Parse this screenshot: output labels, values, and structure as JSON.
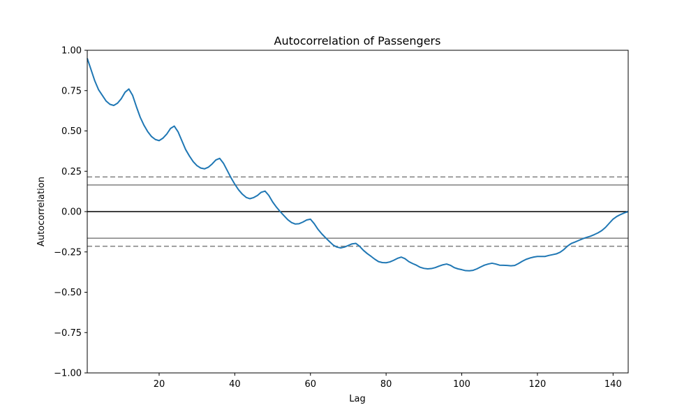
{
  "chart_data": {
    "type": "line",
    "title": "Autocorrelation of Passengers",
    "xlabel": "Lag",
    "ylabel": "Autocorrelation",
    "xlim": [
      1,
      144
    ],
    "ylim": [
      -1.0,
      1.0
    ],
    "x_ticks": [
      20,
      40,
      60,
      80,
      100,
      120,
      140
    ],
    "y_ticks": [
      -1.0,
      -0.75,
      -0.5,
      -0.25,
      0.0,
      0.25,
      0.5,
      0.75,
      1.0
    ],
    "y_tick_labels": [
      "−1.00",
      "−0.75",
      "−0.50",
      "−0.25",
      "0.00",
      "0.25",
      "0.50",
      "0.75",
      "1.00"
    ],
    "confidence_lines": [
      {
        "y": 0.215,
        "style": "dashed",
        "color": "#808080"
      },
      {
        "y": 0.165,
        "style": "solid",
        "color": "#808080"
      },
      {
        "y": 0.0,
        "style": "solid",
        "color": "#000000"
      },
      {
        "y": -0.165,
        "style": "solid",
        "color": "#808080"
      },
      {
        "y": -0.215,
        "style": "dashed",
        "color": "#808080"
      }
    ],
    "grid": false,
    "series": [
      {
        "color": "#1f77b4",
        "points": [
          [
            1,
            0.95
          ],
          [
            2,
            0.88
          ],
          [
            3,
            0.81
          ],
          [
            4,
            0.755
          ],
          [
            5,
            0.72
          ],
          [
            6,
            0.685
          ],
          [
            7,
            0.665
          ],
          [
            8,
            0.658
          ],
          [
            9,
            0.672
          ],
          [
            10,
            0.7
          ],
          [
            11,
            0.74
          ],
          [
            12,
            0.76
          ],
          [
            13,
            0.72
          ],
          [
            14,
            0.65
          ],
          [
            15,
            0.585
          ],
          [
            16,
            0.535
          ],
          [
            17,
            0.495
          ],
          [
            18,
            0.465
          ],
          [
            19,
            0.447
          ],
          [
            20,
            0.44
          ],
          [
            21,
            0.455
          ],
          [
            22,
            0.48
          ],
          [
            23,
            0.515
          ],
          [
            24,
            0.53
          ],
          [
            25,
            0.495
          ],
          [
            26,
            0.44
          ],
          [
            27,
            0.385
          ],
          [
            28,
            0.345
          ],
          [
            29,
            0.31
          ],
          [
            30,
            0.285
          ],
          [
            31,
            0.27
          ],
          [
            32,
            0.265
          ],
          [
            33,
            0.275
          ],
          [
            34,
            0.295
          ],
          [
            35,
            0.32
          ],
          [
            36,
            0.33
          ],
          [
            37,
            0.3
          ],
          [
            38,
            0.255
          ],
          [
            39,
            0.21
          ],
          [
            40,
            0.17
          ],
          [
            41,
            0.135
          ],
          [
            42,
            0.108
          ],
          [
            43,
            0.088
          ],
          [
            44,
            0.08
          ],
          [
            45,
            0.087
          ],
          [
            46,
            0.1
          ],
          [
            47,
            0.12
          ],
          [
            48,
            0.127
          ],
          [
            49,
            0.1
          ],
          [
            50,
            0.06
          ],
          [
            51,
            0.028
          ],
          [
            52,
            0.0
          ],
          [
            53,
            -0.025
          ],
          [
            54,
            -0.05
          ],
          [
            55,
            -0.068
          ],
          [
            56,
            -0.077
          ],
          [
            57,
            -0.075
          ],
          [
            58,
            -0.065
          ],
          [
            59,
            -0.052
          ],
          [
            60,
            -0.047
          ],
          [
            61,
            -0.075
          ],
          [
            62,
            -0.11
          ],
          [
            63,
            -0.138
          ],
          [
            64,
            -0.162
          ],
          [
            65,
            -0.185
          ],
          [
            66,
            -0.207
          ],
          [
            67,
            -0.22
          ],
          [
            68,
            -0.225
          ],
          [
            69,
            -0.22
          ],
          [
            70,
            -0.21
          ],
          [
            71,
            -0.2
          ],
          [
            72,
            -0.197
          ],
          [
            73,
            -0.215
          ],
          [
            74,
            -0.24
          ],
          [
            75,
            -0.26
          ],
          [
            76,
            -0.277
          ],
          [
            77,
            -0.295
          ],
          [
            78,
            -0.31
          ],
          [
            79,
            -0.316
          ],
          [
            80,
            -0.317
          ],
          [
            81,
            -0.312
          ],
          [
            82,
            -0.302
          ],
          [
            83,
            -0.29
          ],
          [
            84,
            -0.282
          ],
          [
            85,
            -0.292
          ],
          [
            86,
            -0.31
          ],
          [
            87,
            -0.322
          ],
          [
            88,
            -0.332
          ],
          [
            89,
            -0.345
          ],
          [
            90,
            -0.352
          ],
          [
            91,
            -0.355
          ],
          [
            92,
            -0.353
          ],
          [
            93,
            -0.347
          ],
          [
            94,
            -0.338
          ],
          [
            95,
            -0.33
          ],
          [
            96,
            -0.325
          ],
          [
            97,
            -0.333
          ],
          [
            98,
            -0.347
          ],
          [
            99,
            -0.355
          ],
          [
            100,
            -0.36
          ],
          [
            101,
            -0.366
          ],
          [
            102,
            -0.367
          ],
          [
            103,
            -0.364
          ],
          [
            104,
            -0.355
          ],
          [
            105,
            -0.343
          ],
          [
            106,
            -0.332
          ],
          [
            107,
            -0.325
          ],
          [
            108,
            -0.32
          ],
          [
            109,
            -0.325
          ],
          [
            110,
            -0.332
          ],
          [
            111,
            -0.333
          ],
          [
            112,
            -0.334
          ],
          [
            113,
            -0.336
          ],
          [
            114,
            -0.334
          ],
          [
            115,
            -0.322
          ],
          [
            116,
            -0.308
          ],
          [
            117,
            -0.296
          ],
          [
            118,
            -0.288
          ],
          [
            119,
            -0.282
          ],
          [
            120,
            -0.278
          ],
          [
            121,
            -0.278
          ],
          [
            122,
            -0.278
          ],
          [
            123,
            -0.272
          ],
          [
            124,
            -0.267
          ],
          [
            125,
            -0.262
          ],
          [
            126,
            -0.252
          ],
          [
            127,
            -0.235
          ],
          [
            128,
            -0.213
          ],
          [
            129,
            -0.197
          ],
          [
            130,
            -0.188
          ],
          [
            131,
            -0.178
          ],
          [
            132,
            -0.168
          ],
          [
            133,
            -0.16
          ],
          [
            134,
            -0.153
          ],
          [
            135,
            -0.143
          ],
          [
            136,
            -0.132
          ],
          [
            137,
            -0.118
          ],
          [
            138,
            -0.098
          ],
          [
            139,
            -0.072
          ],
          [
            140,
            -0.047
          ],
          [
            141,
            -0.03
          ],
          [
            142,
            -0.018
          ],
          [
            143,
            -0.008
          ],
          [
            144,
            0.0
          ]
        ]
      }
    ]
  }
}
